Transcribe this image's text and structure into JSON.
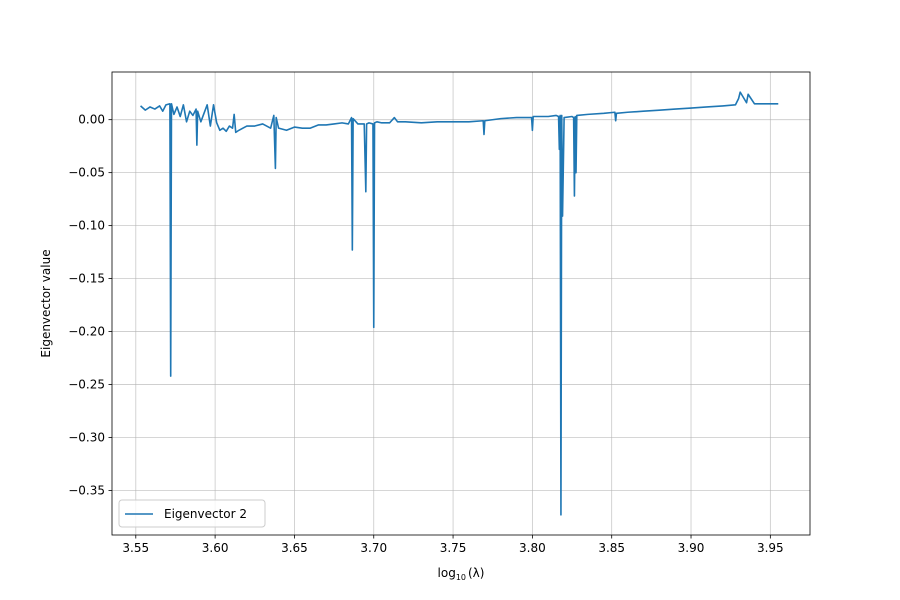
{
  "chart_data": {
    "type": "line",
    "title": "",
    "xlabel_base": "log",
    "xlabel_sub": "10",
    "xlabel_arg": "(λ)",
    "ylabel": "Eigenvector value",
    "xlim": [
      3.535,
      3.975
    ],
    "ylim": [
      -0.392,
      0.045
    ],
    "x_ticks": [
      3.55,
      3.6,
      3.65,
      3.7,
      3.75,
      3.8,
      3.85,
      3.9,
      3.95
    ],
    "x_tick_labels": [
      "3.55",
      "3.60",
      "3.65",
      "3.70",
      "3.75",
      "3.80",
      "3.85",
      "3.90",
      "3.95"
    ],
    "y_ticks": [
      0.0,
      -0.05,
      -0.1,
      -0.15,
      -0.2,
      -0.25,
      -0.3,
      -0.35
    ],
    "y_tick_labels": [
      "0.00",
      "−0.05",
      "−0.10",
      "−0.15",
      "−0.20",
      "−0.25",
      "−0.30",
      "−0.35"
    ],
    "grid": true,
    "legend_position": "lower-left",
    "series": [
      {
        "name": "Eigenvector 2",
        "color": "#1f77b4",
        "x": [
          3.553,
          3.556,
          3.559,
          3.562,
          3.565,
          3.567,
          3.569,
          3.5715,
          3.572,
          3.5725,
          3.574,
          3.576,
          3.578,
          3.58,
          3.582,
          3.584,
          3.586,
          3.588,
          3.5885,
          3.589,
          3.591,
          3.593,
          3.595,
          3.597,
          3.599,
          3.601,
          3.603,
          3.605,
          3.607,
          3.609,
          3.611,
          3.612,
          3.613,
          3.615,
          3.62,
          3.625,
          3.63,
          3.635,
          3.637,
          3.638,
          3.6385,
          3.64,
          3.645,
          3.65,
          3.655,
          3.66,
          3.665,
          3.67,
          3.675,
          3.68,
          3.684,
          3.686,
          3.6865,
          3.687,
          3.69,
          3.694,
          3.695,
          3.6955,
          3.697,
          3.6995,
          3.7,
          3.7005,
          3.702,
          3.705,
          3.71,
          3.713,
          3.715,
          3.72,
          3.73,
          3.74,
          3.75,
          3.76,
          3.769,
          3.7695,
          3.77,
          3.78,
          3.79,
          3.7995,
          3.8,
          3.8005,
          3.81,
          3.815,
          3.8165,
          3.817,
          3.8175,
          3.818,
          3.8185,
          3.819,
          3.82,
          3.825,
          3.826,
          3.8265,
          3.827,
          3.8275,
          3.828,
          3.835,
          3.845,
          3.852,
          3.8525,
          3.853,
          3.86,
          3.87,
          3.88,
          3.89,
          3.9,
          3.91,
          3.92,
          3.928,
          3.93,
          3.931,
          3.935,
          3.936,
          3.94,
          3.945,
          3.95,
          3.955
        ],
        "y": [
          0.013,
          0.009,
          0.012,
          0.01,
          0.013,
          0.008,
          0.014,
          0.015,
          -0.242,
          0.015,
          0.005,
          0.012,
          0.003,
          0.014,
          -0.002,
          0.008,
          0.004,
          0.01,
          -0.024,
          0.008,
          -0.002,
          0.006,
          0.014,
          -0.006,
          0.014,
          -0.003,
          -0.01,
          -0.008,
          -0.011,
          -0.006,
          -0.008,
          0.005,
          -0.012,
          -0.01,
          -0.006,
          -0.006,
          -0.004,
          -0.008,
          0.004,
          -0.046,
          0.002,
          -0.008,
          -0.01,
          -0.007,
          -0.008,
          -0.008,
          -0.005,
          -0.005,
          -0.004,
          -0.003,
          -0.004,
          0.002,
          -0.123,
          0.001,
          -0.004,
          -0.004,
          -0.068,
          -0.004,
          -0.003,
          -0.004,
          -0.196,
          -0.003,
          -0.002,
          -0.003,
          -0.003,
          0.002,
          -0.002,
          -0.002,
          -0.003,
          -0.002,
          -0.002,
          -0.002,
          -0.001,
          -0.014,
          -0.001,
          0.001,
          0.002,
          0.002,
          -0.01,
          0.003,
          0.003,
          0.004,
          0.003,
          -0.028,
          0.004,
          -0.373,
          0.004,
          -0.091,
          0.002,
          0.003,
          0.002,
          -0.072,
          0.003,
          -0.05,
          0.004,
          0.005,
          0.006,
          0.007,
          -0.001,
          0.006,
          0.007,
          0.008,
          0.009,
          0.01,
          0.011,
          0.012,
          0.013,
          0.014,
          0.02,
          0.026,
          0.016,
          0.024,
          0.015,
          0.015,
          0.015,
          0.015
        ]
      }
    ]
  }
}
